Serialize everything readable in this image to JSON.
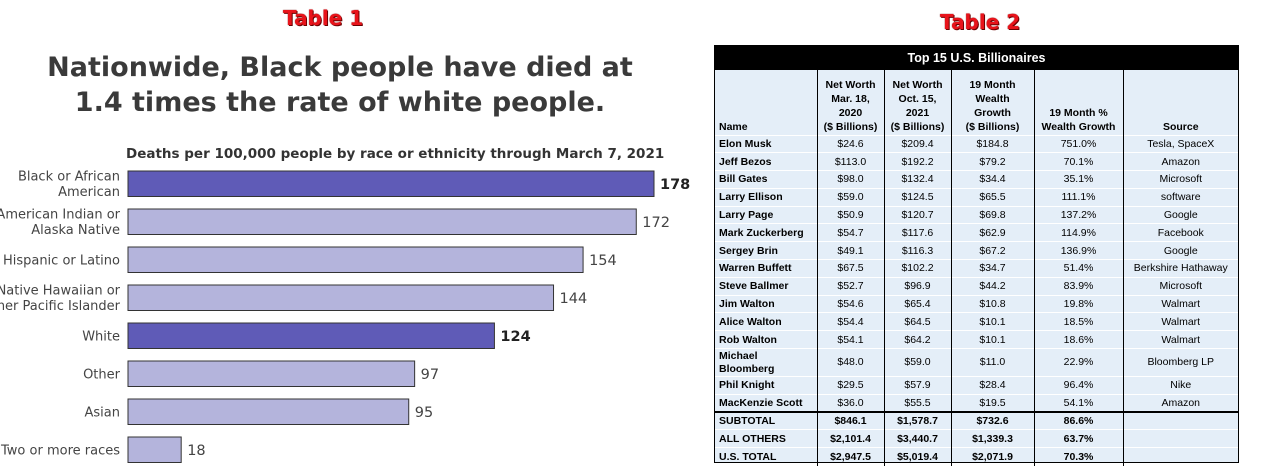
{
  "labels": {
    "table1": "Table 1",
    "table2": "Table 2"
  },
  "chart_data": {
    "type": "bar",
    "orientation": "horizontal",
    "title": "Nationwide, Black people have died at 1.4 times the rate of white people.",
    "subtitle": "Deaths per 100,000 people by race or ethnicity through March 7, 2021",
    "categories": [
      [
        "Black or African",
        "American"
      ],
      [
        "American Indian or",
        "Alaska Native"
      ],
      [
        "Hispanic or Latino"
      ],
      [
        "Native Hawaiian or",
        "ther Pacific Islander"
      ],
      [
        "White"
      ],
      [
        "Other"
      ],
      [
        "Asian"
      ],
      [
        "Two or more races"
      ]
    ],
    "values": [
      178,
      172,
      154,
      144,
      124,
      97,
      95,
      18
    ],
    "highlight": [
      true,
      false,
      false,
      false,
      true,
      false,
      false,
      false
    ],
    "colors": {
      "highlight": "#5f5bb7",
      "normal": "#b4b4dc",
      "border": "#333333"
    },
    "xlim": [
      0,
      190
    ],
    "grid": false
  },
  "table": {
    "title": "Top 15 U.S. Billionaires",
    "headers": [
      "Name",
      "Net Worth\nMar. 18,\n2020\n($ Billions)",
      "Net Worth\nOct. 15,\n2021\n($ Billions)",
      "19 Month\nWealth\nGrowth\n($ Billions)",
      "19 Month %\nWealth Growth",
      "Source"
    ],
    "rows": [
      [
        "Elon Musk",
        "$24.6",
        "$209.4",
        "$184.8",
        "751.0%",
        "Tesla, SpaceX"
      ],
      [
        "Jeff Bezos",
        "$113.0",
        "$192.2",
        "$79.2",
        "70.1%",
        "Amazon"
      ],
      [
        "Bill Gates",
        "$98.0",
        "$132.4",
        "$34.4",
        "35.1%",
        "Microsoft"
      ],
      [
        "Larry Ellison",
        "$59.0",
        "$124.5",
        "$65.5",
        "111.1%",
        "software"
      ],
      [
        "Larry Page",
        "$50.9",
        "$120.7",
        "$69.8",
        "137.2%",
        "Google"
      ],
      [
        "Mark Zuckerberg",
        "$54.7",
        "$117.6",
        "$62.9",
        "114.9%",
        "Facebook"
      ],
      [
        "Sergey Brin",
        "$49.1",
        "$116.3",
        "$67.2",
        "136.9%",
        "Google"
      ],
      [
        "Warren Buffett",
        "$67.5",
        "$102.2",
        "$34.7",
        "51.4%",
        "Berkshire Hathaway"
      ],
      [
        "Steve Ballmer",
        "$52.7",
        "$96.9",
        "$44.2",
        "83.9%",
        "Microsoft"
      ],
      [
        "Jim Walton",
        "$54.6",
        "$65.4",
        "$10.8",
        "19.8%",
        "Walmart"
      ],
      [
        "Alice Walton",
        "$54.4",
        "$64.5",
        "$10.1",
        "18.5%",
        "Walmart"
      ],
      [
        "Rob Walton",
        "$54.1",
        "$64.2",
        "$10.1",
        "18.6%",
        "Walmart"
      ],
      [
        "Michael\nBloomberg",
        "$48.0",
        "$59.0",
        "$11.0",
        "22.9%",
        "Bloomberg LP"
      ],
      [
        "Phil Knight",
        "$29.5",
        "$57.9",
        "$28.4",
        "96.4%",
        "Nike"
      ],
      [
        "MacKenzie Scott",
        "$36.0",
        "$55.5",
        "$19.5",
        "54.1%",
        "Amazon"
      ]
    ],
    "totals": [
      [
        "SUBTOTAL",
        "$846.1",
        "$1,578.7",
        "$732.6",
        "86.6%",
        ""
      ],
      [
        "ALL OTHERS",
        "$2,101.4",
        "$3,440.7",
        "$1,339.3",
        "63.7%",
        ""
      ],
      [
        "U.S. TOTAL",
        "$2,947.5",
        "$5,019.4",
        "$2,071.9",
        "70.3%",
        ""
      ]
    ]
  }
}
